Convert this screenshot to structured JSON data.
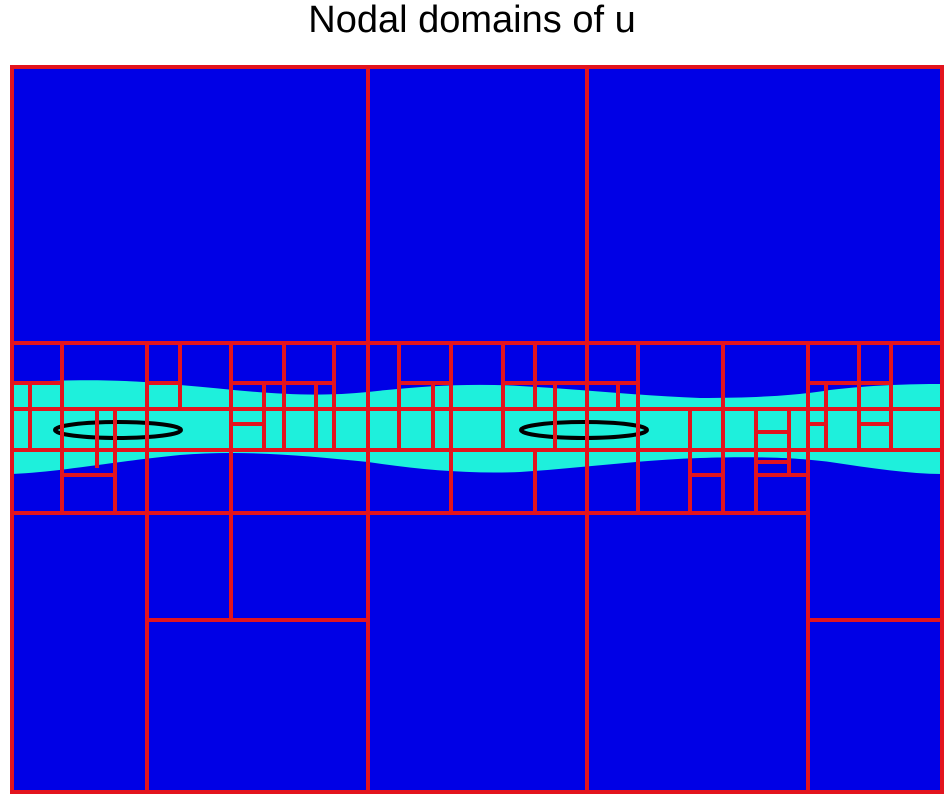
{
  "title": "Nodal domains of u",
  "colors": {
    "negative_domain": "#0000e6",
    "positive_domain": "#1ef0dc",
    "cell_border": "#e3141e",
    "nodal_ellipse": "#000000"
  }
}
